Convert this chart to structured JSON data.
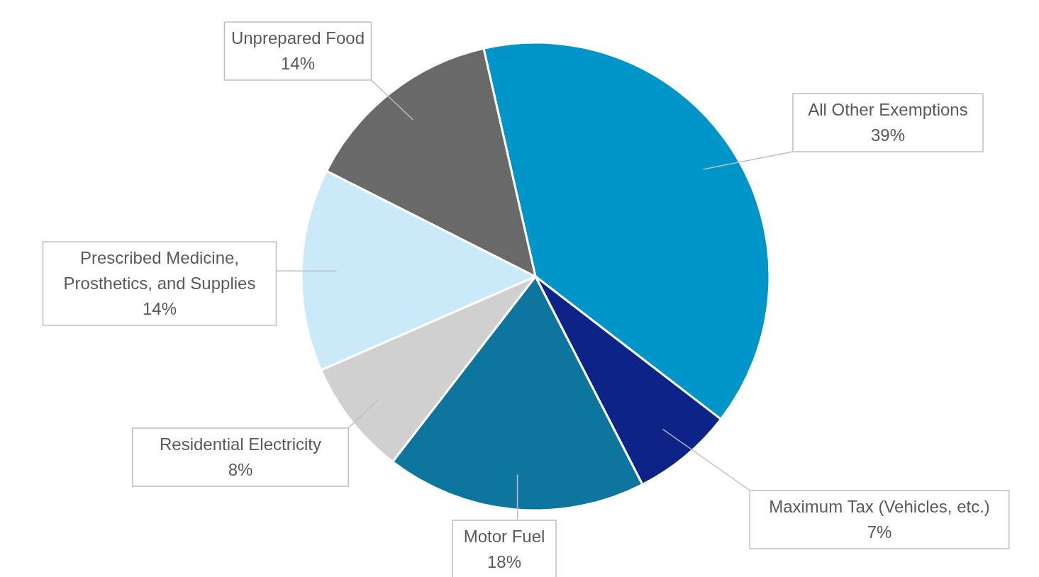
{
  "chart_data": {
    "type": "pie",
    "categories": [
      "All Other Exemptions",
      "Maximum Tax (Vehicles, etc.)",
      "Motor Fuel",
      "Residential Electricity",
      "Prescribed Medicine, Prosthetics, and Supplies",
      "Unprepared Food"
    ],
    "values": [
      39,
      7,
      18,
      8,
      14,
      14
    ],
    "colors": [
      "#0095c8",
      "#0d2387",
      "#0e769e",
      "#d0d0d0",
      "#cbeaf9",
      "#696969"
    ],
    "value_labels": [
      "39%",
      "7%",
      "18%",
      "8%",
      "14%",
      "14%"
    ]
  }
}
